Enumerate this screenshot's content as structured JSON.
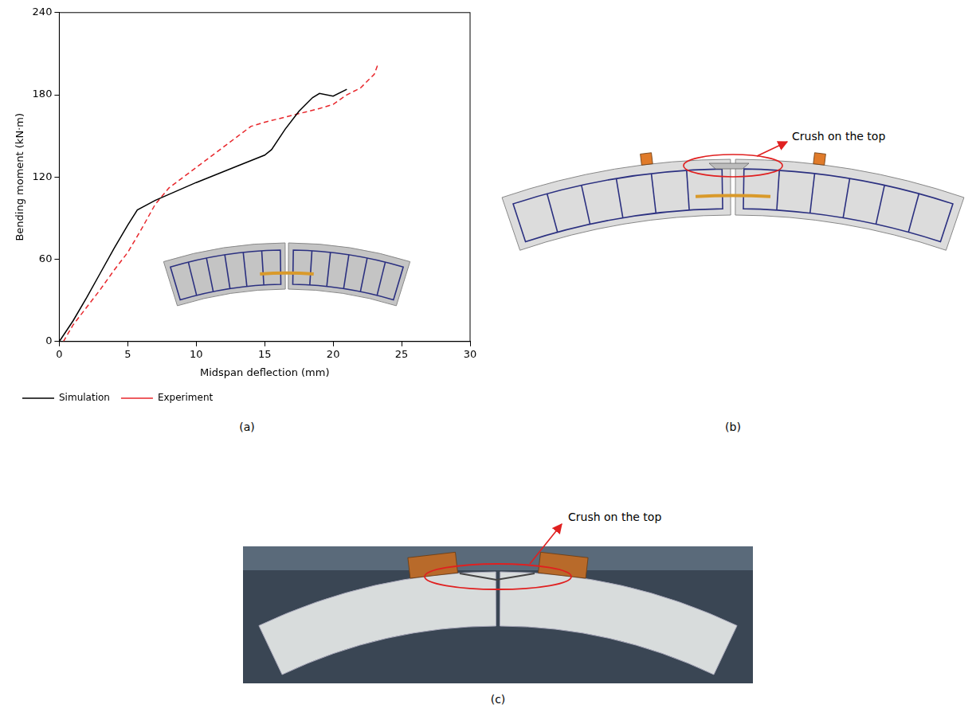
{
  "chart_data": {
    "type": "line",
    "x_label": "Midspan deflection (mm)",
    "y_label": "Bending moment (kN·m)",
    "xlim": [
      0,
      30
    ],
    "xticks": [
      0,
      5,
      10,
      15,
      20,
      25,
      30
    ],
    "ylim": [
      0,
      240
    ],
    "yticks": [
      0,
      60,
      120,
      180,
      240
    ],
    "grid": false,
    "legend": "bottom",
    "series": [
      {
        "name": "Simulation",
        "color": "#000000",
        "line_style": "solid",
        "x": [
          0,
          1,
          2,
          3,
          4,
          5,
          5.7,
          7,
          10,
          13,
          15,
          15.5,
          16.5,
          17.5,
          18.5,
          19,
          20,
          21
        ],
        "values": [
          0,
          15,
          32,
          50,
          68,
          85,
          96,
          103,
          116,
          128,
          136,
          140,
          155,
          168,
          178,
          181,
          179,
          184
        ]
      },
      {
        "name": "Experiment",
        "color": "#e8262b",
        "line_style": "dashed",
        "x": [
          0.3,
          1,
          2,
          3,
          4,
          5,
          6,
          7,
          8,
          10,
          12,
          14,
          15,
          17,
          19,
          20,
          21,
          22,
          23,
          23.3
        ],
        "values": [
          0,
          12,
          25,
          38,
          52,
          65,
          82,
          100,
          112,
          127,
          142,
          157,
          160,
          165,
          170,
          173,
          180,
          185,
          195,
          203
        ]
      }
    ]
  },
  "panel_labels": [
    "(a)",
    "(b)",
    "(c)"
  ],
  "annotations": [
    {
      "panel": "(b)",
      "text": "Crush on the top"
    },
    {
      "panel": "(c)",
      "text": "Crush on the top"
    }
  ]
}
